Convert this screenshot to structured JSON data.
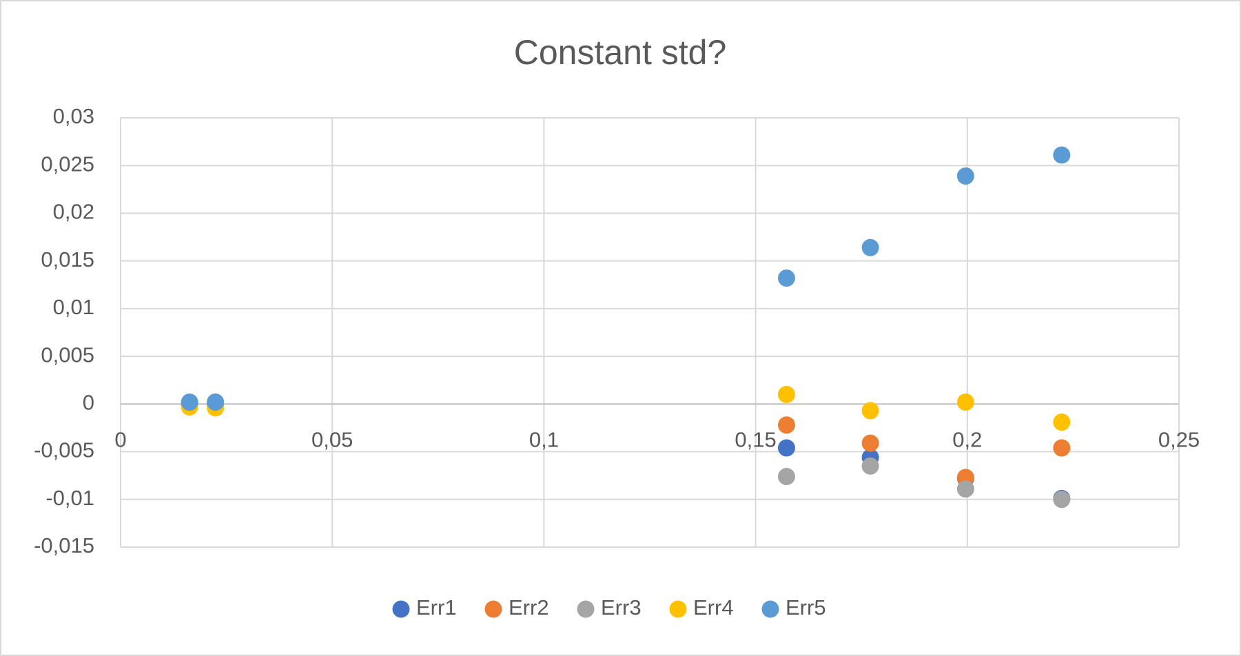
{
  "chart_data": {
    "type": "scatter",
    "title": "Constant std?",
    "x": [
      0.0163,
      0.0224,
      0.1573,
      0.1771,
      0.1996,
      0.2223
    ],
    "series": [
      {
        "name": "Err1",
        "color": "#4472c4",
        "values": [
          0,
          0,
          -0.0046,
          -0.0056,
          -0.0078,
          -0.0099
        ]
      },
      {
        "name": "Err2",
        "color": "#ed7d31",
        "values": [
          0,
          0.0002,
          -0.0022,
          -0.0041,
          -0.0077,
          -0.0046
        ]
      },
      {
        "name": "Err3",
        "color": "#a5a5a5",
        "values": [
          0,
          0,
          -0.0076,
          -0.0065,
          -0.0089,
          -0.01
        ]
      },
      {
        "name": "Err4",
        "color": "#ffc000",
        "values": [
          -0.0003,
          -0.0004,
          0.001,
          -0.0007,
          0.0002,
          -0.0019
        ]
      },
      {
        "name": "Err5",
        "color": "#5b9bd5",
        "values": [
          0.0002,
          0.0002,
          0.0132,
          0.0164,
          0.0239,
          0.0261
        ]
      }
    ],
    "xlim": [
      0,
      0.25
    ],
    "xticks": [
      0,
      {
        "value": 0.05,
        "label": "0,05"
      },
      {
        "value": 0.1,
        "label": "0,1"
      },
      {
        "value": 0.15,
        "label": "0,15"
      },
      {
        "value": 0.2,
        "label": "0,2"
      },
      {
        "value": 0.25,
        "label": "0,25"
      }
    ],
    "ylim": [
      -0.015,
      0.03
    ],
    "yticks": [
      {
        "value": -0.015,
        "label": "-0,015"
      },
      {
        "value": -0.01,
        "label": "-0,01"
      },
      {
        "value": -0.005,
        "label": "-0,005"
      },
      0,
      {
        "value": 0.005,
        "label": "0,005"
      },
      {
        "value": 0.01,
        "label": "0,01"
      },
      {
        "value": 0.015,
        "label": "0,015"
      },
      {
        "value": 0.02,
        "label": "0,02"
      },
      {
        "value": 0.025,
        "label": "0,025"
      },
      {
        "value": 0.03,
        "label": "0,03"
      }
    ],
    "grid": true,
    "legend": "bottom"
  }
}
